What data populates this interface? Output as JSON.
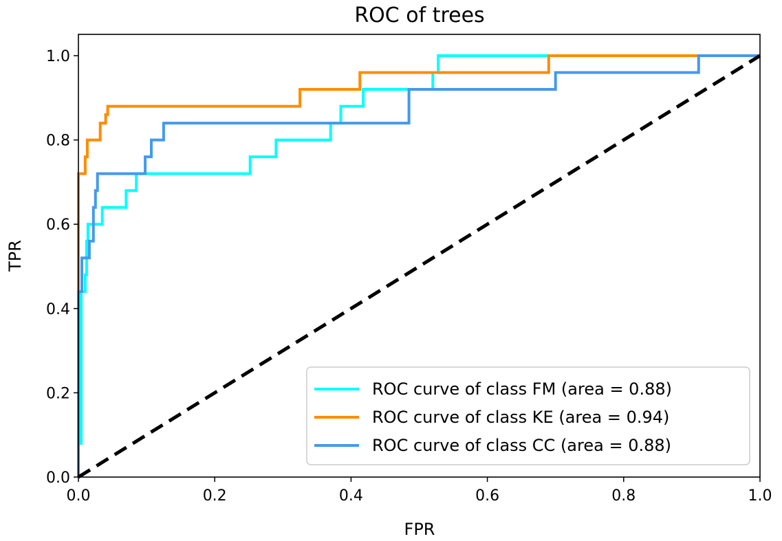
{
  "chart_data": {
    "type": "line",
    "title": "ROC of trees",
    "xlabel": "FPR",
    "ylabel": "TPR",
    "xlim": [
      0.0,
      1.0
    ],
    "ylim": [
      0.0,
      1.0
    ],
    "xticks": [
      "0.0",
      "0.2",
      "0.4",
      "0.6",
      "0.8",
      "1.0"
    ],
    "yticks": [
      "0.0",
      "0.2",
      "0.4",
      "0.6",
      "0.8",
      "1.0"
    ],
    "grid": false,
    "legend_position": "lower-right",
    "series": [
      {
        "name": "ROC curve of class FM (area = 0.88)",
        "color": "#00FFFF",
        "points": [
          [
            0,
            0
          ],
          [
            0,
            0.08
          ],
          [
            0.004,
            0.08
          ],
          [
            0.004,
            0.44
          ],
          [
            0.01,
            0.44
          ],
          [
            0.01,
            0.48
          ],
          [
            0.012,
            0.48
          ],
          [
            0.012,
            0.56
          ],
          [
            0.014,
            0.56
          ],
          [
            0.014,
            0.6
          ],
          [
            0.025,
            0.6
          ],
          [
            0.025,
            0.6
          ],
          [
            0.035,
            0.6
          ],
          [
            0.035,
            0.64
          ],
          [
            0.07,
            0.64
          ],
          [
            0.07,
            0.68
          ],
          [
            0.085,
            0.68
          ],
          [
            0.085,
            0.72
          ],
          [
            0.252,
            0.72
          ],
          [
            0.252,
            0.76
          ],
          [
            0.29,
            0.76
          ],
          [
            0.29,
            0.8
          ],
          [
            0.37,
            0.8
          ],
          [
            0.37,
            0.84
          ],
          [
            0.385,
            0.84
          ],
          [
            0.385,
            0.88
          ],
          [
            0.418,
            0.88
          ],
          [
            0.418,
            0.92
          ],
          [
            0.52,
            0.92
          ],
          [
            0.52,
            0.96
          ],
          [
            0.528,
            0.96
          ],
          [
            0.528,
            1.0
          ],
          [
            1.0,
            1.0
          ]
        ]
      },
      {
        "name": "ROC curve of class KE (area = 0.94)",
        "color": "#FF8C00",
        "points": [
          [
            0,
            0
          ],
          [
            0,
            0.72
          ],
          [
            0.01,
            0.72
          ],
          [
            0.01,
            0.76
          ],
          [
            0.013,
            0.76
          ],
          [
            0.013,
            0.8
          ],
          [
            0.025,
            0.8
          ],
          [
            0.025,
            0.8
          ],
          [
            0.032,
            0.8
          ],
          [
            0.032,
            0.84
          ],
          [
            0.04,
            0.84
          ],
          [
            0.04,
            0.86
          ],
          [
            0.043,
            0.86
          ],
          [
            0.043,
            0.88
          ],
          [
            0.325,
            0.88
          ],
          [
            0.325,
            0.92
          ],
          [
            0.413,
            0.92
          ],
          [
            0.413,
            0.96
          ],
          [
            0.69,
            0.96
          ],
          [
            0.69,
            1.0
          ],
          [
            1.0,
            1.0
          ]
        ]
      },
      {
        "name": "ROC curve of class CC (area = 0.88)",
        "color": "#4499EE",
        "points": [
          [
            0,
            0
          ],
          [
            0,
            0.44
          ],
          [
            0.005,
            0.44
          ],
          [
            0.005,
            0.52
          ],
          [
            0.016,
            0.52
          ],
          [
            0.016,
            0.56
          ],
          [
            0.022,
            0.56
          ],
          [
            0.022,
            0.64
          ],
          [
            0.025,
            0.64
          ],
          [
            0.025,
            0.68
          ],
          [
            0.028,
            0.68
          ],
          [
            0.028,
            0.72
          ],
          [
            0.098,
            0.72
          ],
          [
            0.098,
            0.76
          ],
          [
            0.107,
            0.76
          ],
          [
            0.107,
            0.8
          ],
          [
            0.125,
            0.8
          ],
          [
            0.125,
            0.84
          ],
          [
            0.485,
            0.84
          ],
          [
            0.485,
            0.92
          ],
          [
            0.7,
            0.92
          ],
          [
            0.7,
            0.96
          ],
          [
            0.91,
            0.96
          ],
          [
            0.91,
            1.0
          ],
          [
            1.0,
            1.0
          ]
        ]
      }
    ],
    "reference_line": {
      "points": [
        [
          0,
          0
        ],
        [
          1,
          1
        ]
      ],
      "color": "#000000",
      "style": "dashed"
    }
  }
}
